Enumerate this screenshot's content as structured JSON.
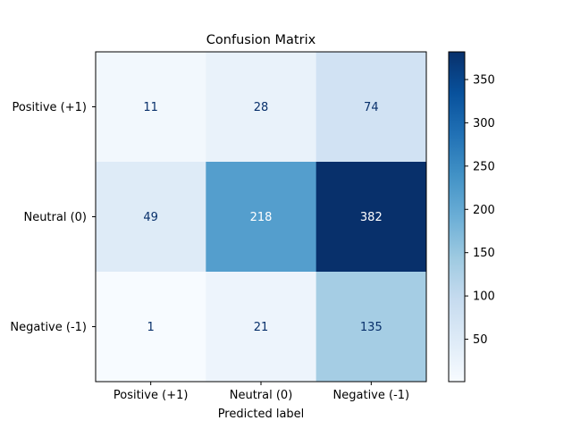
{
  "chart_data": {
    "type": "heatmap",
    "title": "Confusion Matrix",
    "xlabel": "Predicted label",
    "ylabel": "",
    "row_labels": [
      "Positive (+1)",
      "Neutral (0)",
      "Negative (-1)"
    ],
    "col_labels": [
      "Positive (+1)",
      "Neutral (0)",
      "Negative (-1)"
    ],
    "values": [
      [
        11,
        28,
        74
      ],
      [
        49,
        218,
        382
      ],
      [
        1,
        21,
        135
      ]
    ],
    "colormap": "Blues",
    "color_range": [
      1,
      382
    ],
    "colorbar_ticks": [
      50,
      100,
      150,
      200,
      250,
      300,
      350
    ],
    "text_color_light": "#ffffff",
    "text_color_dark": "#08306b"
  }
}
